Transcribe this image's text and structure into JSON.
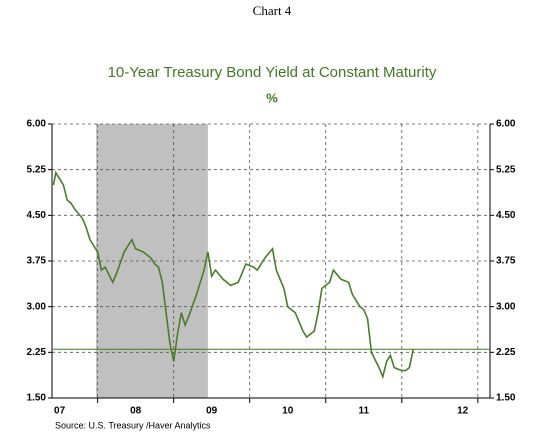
{
  "chart_data": {
    "type": "line",
    "header": "Chart 4",
    "title": "10-Year Treasury Bond Yield at Constant Maturity",
    "subtitle": "%",
    "source": "Source:  U.S. Treasury /Haver Analytics",
    "xlim": [
      2007.4,
      2013.16
    ],
    "ylim": [
      1.5,
      6.0
    ],
    "yticks": [
      {
        "value": 1.5,
        "label": "1.50"
      },
      {
        "value": 2.25,
        "label": "2.25"
      },
      {
        "value": 3.0,
        "label": "3.00"
      },
      {
        "value": 3.75,
        "label": "3.75"
      },
      {
        "value": 4.5,
        "label": "4.50"
      },
      {
        "value": 5.25,
        "label": "5.25"
      },
      {
        "value": 6.0,
        "label": "6.00"
      }
    ],
    "xticks": [
      {
        "value": 2007.5,
        "label": "07"
      },
      {
        "value": 2008.5,
        "label": "08"
      },
      {
        "value": 2009.5,
        "label": "09"
      },
      {
        "value": 2010.5,
        "label": "10"
      },
      {
        "value": 2011.5,
        "label": "11"
      },
      {
        "value": 2012.8,
        "label": "12"
      }
    ],
    "xgrid": [
      2008,
      2009,
      2010,
      2011,
      2012,
      2013
    ],
    "grid": true,
    "shading": [
      2007.98,
      2009.45
    ],
    "shading_color": "#c0c0c0",
    "reference_line": 2.3,
    "reference_color": "#3f7a22",
    "series": [
      {
        "name": "10-Year Treasury Yield",
        "color": "#4a7d2a",
        "x": [
          2007.42,
          2007.45,
          2007.5,
          2007.55,
          2007.6,
          2007.65,
          2007.7,
          2007.8,
          2007.85,
          2007.9,
          2007.95,
          2008.0,
          2008.05,
          2008.1,
          2008.2,
          2008.25,
          2008.35,
          2008.45,
          2008.5,
          2008.6,
          2008.7,
          2008.75,
          2008.8,
          2008.85,
          2008.9,
          2008.95,
          2009.0,
          2009.05,
          2009.1,
          2009.15,
          2009.2,
          2009.3,
          2009.4,
          2009.45,
          2009.5,
          2009.55,
          2009.65,
          2009.75,
          2009.85,
          2009.95,
          2010.05,
          2010.1,
          2010.2,
          2010.3,
          2010.35,
          2010.45,
          2010.5,
          2010.6,
          2010.7,
          2010.75,
          2010.85,
          2010.9,
          2010.95,
          2011.05,
          2011.1,
          2011.2,
          2011.3,
          2011.35,
          2011.45,
          2011.5,
          2011.55,
          2011.6,
          2011.7,
          2011.75,
          2011.8,
          2011.85,
          2011.9,
          2012.0,
          2012.05,
          2012.1,
          2012.15
        ],
        "values": [
          5.0,
          5.2,
          5.1,
          5.0,
          4.75,
          4.7,
          4.6,
          4.45,
          4.3,
          4.1,
          4.0,
          3.9,
          3.6,
          3.65,
          3.4,
          3.55,
          3.9,
          4.1,
          3.95,
          3.9,
          3.8,
          3.7,
          3.65,
          3.4,
          2.9,
          2.4,
          2.1,
          2.55,
          2.9,
          2.7,
          2.85,
          3.2,
          3.6,
          3.9,
          3.5,
          3.6,
          3.45,
          3.35,
          3.4,
          3.7,
          3.65,
          3.6,
          3.8,
          3.95,
          3.6,
          3.3,
          3.0,
          2.9,
          2.6,
          2.5,
          2.6,
          2.9,
          3.3,
          3.4,
          3.6,
          3.45,
          3.4,
          3.2,
          3.0,
          2.95,
          2.8,
          2.25,
          2.0,
          1.85,
          2.1,
          2.2,
          2.0,
          1.95,
          1.95,
          2.0,
          2.3
        ]
      }
    ]
  }
}
